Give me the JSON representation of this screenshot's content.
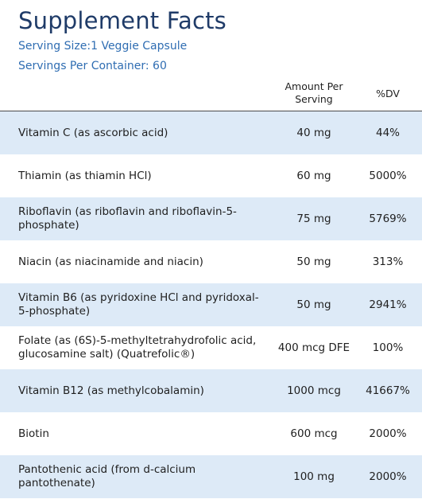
{
  "label": {
    "title": "Supplement Facts",
    "serving_size": "Serving Size:1 Veggie Capsule",
    "servings_per_container": "Servings Per Container: 60"
  },
  "table": {
    "headers": {
      "amount_line1": "Amount Per",
      "amount_line2": "Serving",
      "dv": "%DV"
    },
    "rows": [
      {
        "nutrient": "Vitamin C (as ascorbic acid)",
        "amount": "40 mg",
        "dv": "44%"
      },
      {
        "nutrient": "Thiamin (as thiamin HCl)",
        "amount": "60 mg",
        "dv": "5000%"
      },
      {
        "nutrient": "Riboflavin (as riboflavin and riboflavin-5-phosphate)",
        "amount": "75 mg",
        "dv": "5769%"
      },
      {
        "nutrient": "Niacin (as niacinamide and niacin)",
        "amount": "50 mg",
        "dv": "313%"
      },
      {
        "nutrient": "Vitamin B6 (as pyridoxine HCl and pyridoxal-5-phosphate)",
        "amount": "50 mg",
        "dv": "2941%"
      },
      {
        "nutrient": "Folate (as (6S)-5-methyltetrahydrofolic acid, glucosamine salt) (Quatrefolic®)",
        "amount": "400 mcg DFE",
        "dv": "100%"
      },
      {
        "nutrient": "Vitamin B12 (as methylcobalamin)",
        "amount": "1000 mcg",
        "dv": "41667%"
      },
      {
        "nutrient": "Biotin",
        "amount": "600 mcg",
        "dv": "2000%"
      },
      {
        "nutrient": "Pantothenic acid (from d-calcium pantothenate)",
        "amount": "100 mg",
        "dv": "2000%"
      }
    ]
  },
  "colors": {
    "title": "#1f3b68",
    "serving_text": "#2f6db2",
    "row_shade": "#ddeaf7"
  }
}
